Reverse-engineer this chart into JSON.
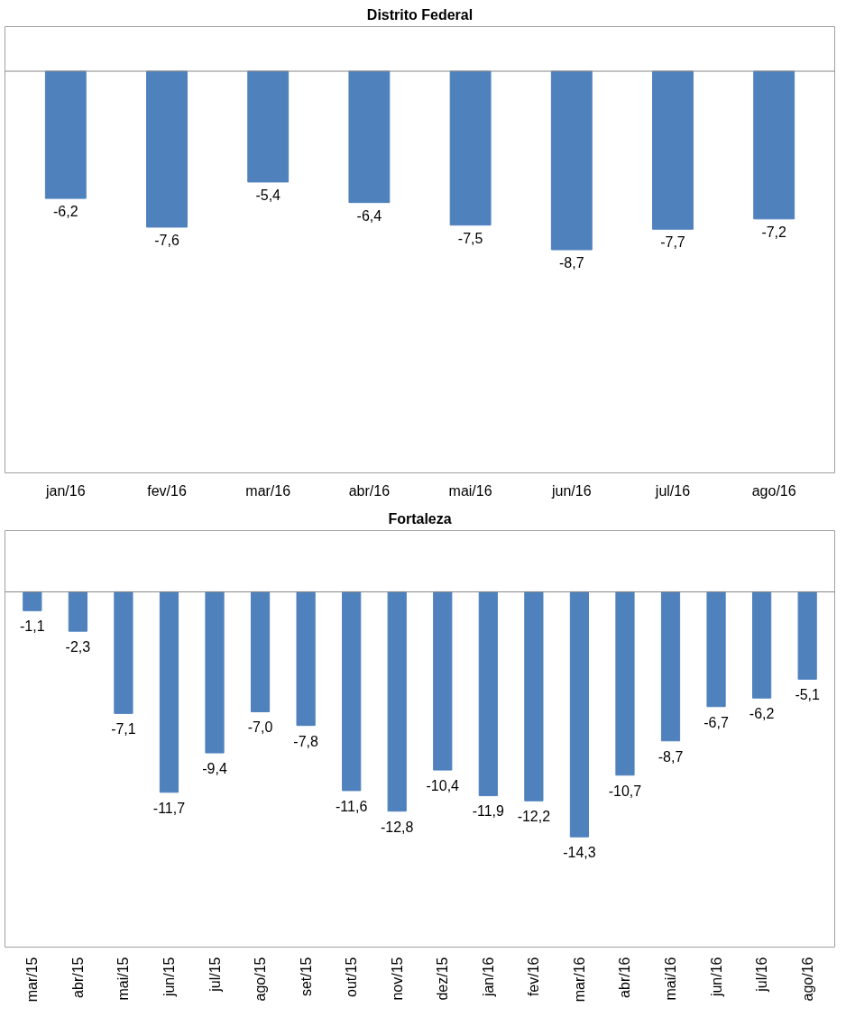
{
  "chart_data": [
    {
      "type": "bar",
      "title": "Distrito Federal",
      "categories": [
        "jan/16",
        "fev/16",
        "mar/16",
        "abr/16",
        "mai/16",
        "jun/16",
        "jul/16",
        "ago/16"
      ],
      "color": "#4f81bd",
      "values": [
        -6.2,
        -7.6,
        -5.4,
        -6.4,
        -7.5,
        -8.7,
        -7.7,
        -7.2
      ],
      "value_labels": [
        "-6,2",
        "-7,6",
        "-5,4",
        "-6,4",
        "-7,5",
        "-8,7",
        "-7,7",
        "-7,2"
      ],
      "grid": false
    },
    {
      "type": "bar",
      "title": "Fortaleza",
      "categories": [
        "mar/15",
        "abr/15",
        "mai/15",
        "jun/15",
        "jul/15",
        "ago/15",
        "set/15",
        "out/15",
        "nov/15",
        "dez/15",
        "jan/16",
        "fev/16",
        "mar/16",
        "abr/16",
        "mai/16",
        "jun/16",
        "jul/16",
        "ago/16"
      ],
      "color": "#4f81bd",
      "values": [
        -1.1,
        -2.3,
        -7.1,
        -11.7,
        -9.4,
        -7.0,
        -7.8,
        -11.6,
        -12.8,
        -10.4,
        -11.9,
        -12.2,
        -14.3,
        -10.7,
        -8.7,
        -6.7,
        -6.2,
        -5.1
      ],
      "value_labels": [
        "-1,1",
        "-2,3",
        "-7,1",
        "-11,7",
        "-9,4",
        "-7,0",
        "-7,8",
        "-11,6",
        "-12,8",
        "-10,4",
        "-11,9",
        "-12,2",
        "-14,3",
        "-10,7",
        "-8,7",
        "-6,7",
        "-6,2",
        "-5,1"
      ],
      "grid": false
    }
  ]
}
